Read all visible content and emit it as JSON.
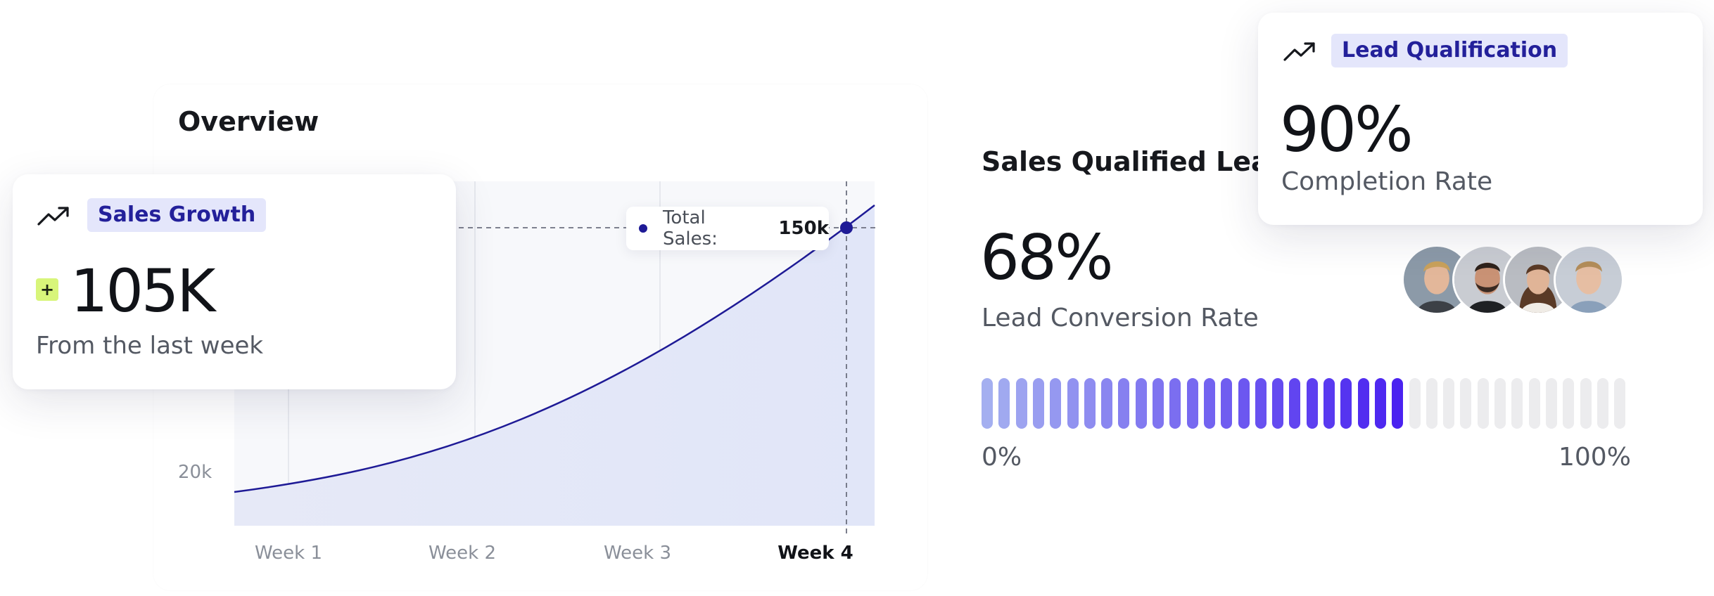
{
  "overview": {
    "title": "Overview",
    "y_tick_label": "20k",
    "x_labels": [
      "Week 1",
      "Week 2",
      "Week 3",
      "Week 4"
    ],
    "active_week": "Week 4",
    "tooltip": {
      "label": "Total Sales:",
      "value": "150k"
    },
    "line_color": "#1e1a96",
    "fill_color": "#e4e8f8"
  },
  "sales_growth": {
    "badge_label": "Sales Growth",
    "change_sign": "+",
    "value": "105K",
    "subtitle": "From the last week",
    "icon": "trend-up-icon"
  },
  "sales_qualified_leads": {
    "title": "Sales Qualified Leads",
    "value": "68%",
    "subtitle": "Lead Conversion Rate",
    "progress_fraction": 0.68,
    "range_min": "0%",
    "range_max": "100%",
    "avatar_count": 4
  },
  "lead_qualification": {
    "badge_label": "Lead Qualification",
    "value": "90%",
    "subtitle": "Completion Rate",
    "icon": "trend-up-icon"
  },
  "colors": {
    "accent": "#23209a",
    "badge_bg": "#e4e6fb",
    "positive_badge": "#d8f57a",
    "progress_start": "#a4aff0",
    "progress_end": "#4a22f0",
    "progress_empty": "#ececee"
  }
}
